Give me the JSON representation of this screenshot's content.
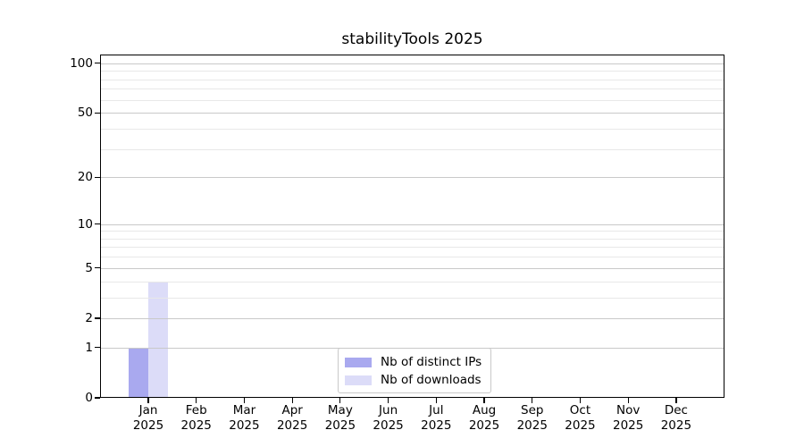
{
  "chart_data": {
    "type": "bar",
    "title": "stabilityTools 2025",
    "categories": [
      "Jan",
      "Feb",
      "Mar",
      "Apr",
      "May",
      "Jun",
      "Jul",
      "Aug",
      "Sep",
      "Oct",
      "Nov",
      "Dec"
    ],
    "x_tick_year": "2025",
    "series": [
      {
        "name": "Nb of distinct IPs",
        "color": "#a9a9ef",
        "values": [
          1,
          0,
          0,
          0,
          0,
          0,
          0,
          0,
          0,
          0,
          0,
          0
        ]
      },
      {
        "name": "Nb of downloads",
        "color": "#dcdcf8",
        "values": [
          4,
          0,
          0,
          0,
          0,
          0,
          0,
          0,
          0,
          0,
          0,
          0
        ]
      }
    ],
    "y_axis": {
      "scale": "log10(1+y)",
      "major_ticks": [
        0,
        1,
        2,
        5,
        10,
        20,
        50,
        100
      ],
      "minor_gridlines": [
        3,
        4,
        6,
        7,
        8,
        9,
        30,
        40,
        60,
        70,
        80,
        90
      ],
      "ylim": [
        0,
        113
      ]
    },
    "legend": {
      "position": "bottom-center",
      "entries": [
        "Nb of distinct IPs",
        "Nb of downloads"
      ]
    },
    "grid": true,
    "colors": {
      "bar_distinct_ips": "#a9a9ef",
      "bar_downloads": "#dcdcf8",
      "major_gridline": "#c9c9c9",
      "minor_gridline": "#e8e8e8",
      "axis": "#000000",
      "background": "#ffffff"
    }
  }
}
